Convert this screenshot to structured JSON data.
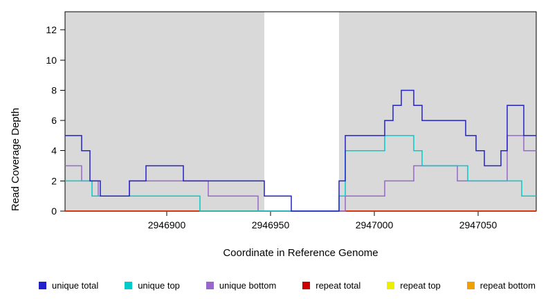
{
  "chart_data": {
    "type": "line",
    "step": true,
    "title": "",
    "xlabel": "Coordinate in Reference Genome",
    "ylabel": "Read Coverage Depth",
    "xlim": [
      2946851,
      2947078
    ],
    "ylim": [
      0,
      13.2
    ],
    "xticks": [
      2946900,
      2946950,
      2947000,
      2947050
    ],
    "yticks": [
      0,
      2,
      4,
      6,
      8,
      10,
      12
    ],
    "grid": false,
    "legend_position": "bottom",
    "plot_background": "#ffffff",
    "shaded_regions": [
      {
        "x0": 2946851,
        "x1": 2946947,
        "color": "#d9d9d9"
      },
      {
        "x0": 2946983,
        "x1": 2947078,
        "color": "#d9d9d9"
      }
    ],
    "series": [
      {
        "name": "unique total",
        "color": "#2222cc",
        "points": [
          [
            2946851,
            5
          ],
          [
            2946859,
            4
          ],
          [
            2946863,
            2
          ],
          [
            2946868,
            1
          ],
          [
            2946882,
            2
          ],
          [
            2946890,
            3
          ],
          [
            2946908,
            2
          ],
          [
            2946947,
            1
          ],
          [
            2946960,
            0
          ],
          [
            2946983,
            2
          ],
          [
            2946986,
            5
          ],
          [
            2947005,
            6
          ],
          [
            2947009,
            7
          ],
          [
            2947013,
            8
          ],
          [
            2947019,
            7
          ],
          [
            2947023,
            6
          ],
          [
            2947044,
            5
          ],
          [
            2947049,
            4
          ],
          [
            2947053,
            3
          ],
          [
            2947061,
            4
          ],
          [
            2947064,
            7
          ],
          [
            2947072,
            5
          ]
        ]
      },
      {
        "name": "unique top",
        "color": "#00cccc",
        "points": [
          [
            2946851,
            2
          ],
          [
            2946864,
            1
          ],
          [
            2946916,
            0
          ],
          [
            2946983,
            1
          ],
          [
            2946986,
            4
          ],
          [
            2947005,
            5
          ],
          [
            2947019,
            4
          ],
          [
            2947023,
            3
          ],
          [
            2947045,
            2
          ],
          [
            2947071,
            1
          ]
        ]
      },
      {
        "name": "unique bottom",
        "color": "#9966cc",
        "points": [
          [
            2946851,
            3
          ],
          [
            2946859,
            2
          ],
          [
            2946867,
            1
          ],
          [
            2946882,
            2
          ],
          [
            2946920,
            1
          ],
          [
            2946944,
            0
          ],
          [
            2946986,
            1
          ],
          [
            2947005,
            2
          ],
          [
            2947019,
            3
          ],
          [
            2947040,
            2
          ],
          [
            2947064,
            5
          ],
          [
            2947072,
            4
          ]
        ]
      },
      {
        "name": "repeat total",
        "color": "#cc0000",
        "points": [
          [
            2946851,
            0
          ]
        ]
      },
      {
        "name": "repeat top",
        "color": "#eeee00",
        "points": [
          [
            2946851,
            0
          ]
        ]
      },
      {
        "name": "repeat bottom",
        "color": "#f0a000",
        "points": [
          [
            2946851,
            0
          ]
        ]
      }
    ]
  }
}
